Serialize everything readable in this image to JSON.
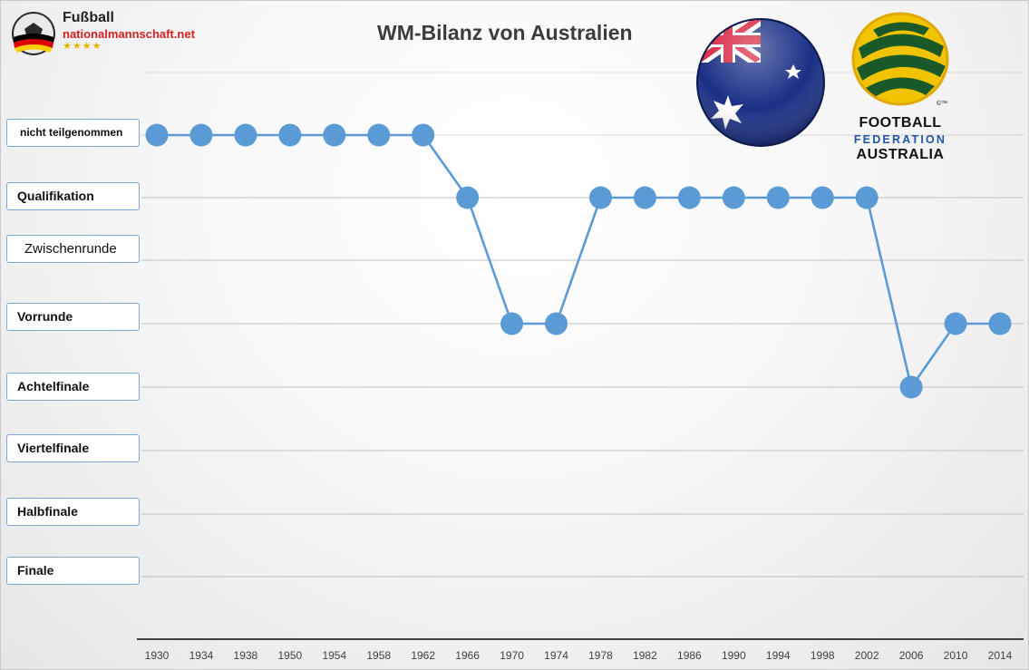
{
  "header": {
    "title": "WM-Bilanz von Australien",
    "logo_name": "Fußball",
    "logo_domain": "nationalmannschaft.net",
    "logo_stars": "★★★★"
  },
  "federation_logo": {
    "line1": "FOOTBALL",
    "line2": "FEDERATION",
    "line3": "AUSTRALIA",
    "trademark": "©™"
  },
  "chart_data": {
    "type": "line",
    "title": "WM-Bilanz von Australien",
    "xlabel": "",
    "ylabel": "",
    "categories": [
      "nicht teilgenommen",
      "Qualifikation",
      "Zwischenrunde",
      "Vorrunde",
      "Achtelfinale",
      "Viertelfinale",
      "Halbfinale",
      "Finale"
    ],
    "x": [
      "1930",
      "1934",
      "1938",
      "1950",
      "1954",
      "1958",
      "1962",
      "1966",
      "1970",
      "1974",
      "1978",
      "1982",
      "1986",
      "1990",
      "1994",
      "1998",
      "2002",
      "2006",
      "2010",
      "2014"
    ],
    "series": [
      {
        "values": [
          "nicht teilgenommen",
          "nicht teilgenommen",
          "nicht teilgenommen",
          "nicht teilgenommen",
          "nicht teilgenommen",
          "nicht teilgenommen",
          "nicht teilgenommen",
          "Qualifikation",
          "Vorrunde",
          "Vorrunde",
          "Qualifikation",
          "Qualifikation",
          "Qualifikation",
          "Qualifikation",
          "Qualifikation",
          "Qualifikation",
          "Qualifikation",
          "Achtelfinale",
          "Vorrunde",
          "Vorrunde"
        ]
      }
    ],
    "grid": true,
    "colors": {
      "line": "#5b9bd5",
      "grid": "#a6a6a6",
      "axis": "#404040",
      "label_border": "#7fa7d3"
    }
  }
}
